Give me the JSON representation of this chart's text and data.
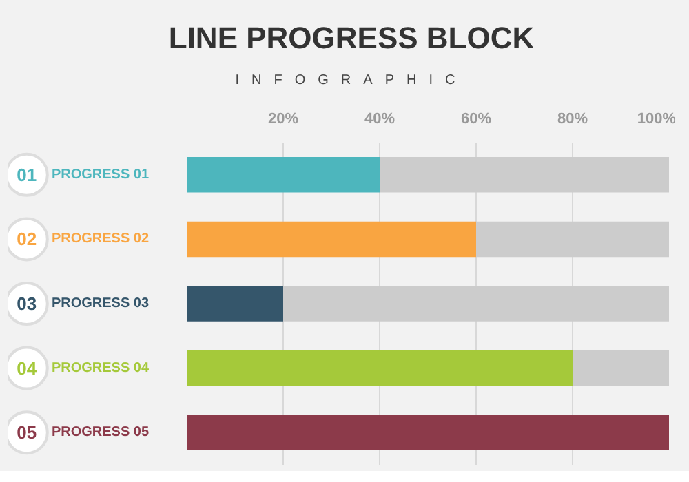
{
  "chart_data": {
    "type": "bar",
    "orientation": "horizontal",
    "stacked": true,
    "title": "LINE PROGRESS BLOCK",
    "subtitle": "INFOGRAPHIC",
    "categories": [
      "PROGRESS 01",
      "PROGRESS 02",
      "PROGRESS 03",
      "PROGRESS 04",
      "PROGRESS 05"
    ],
    "series": [
      {
        "colors": [
          "#4db6bd",
          "#f9a541",
          "#35566b",
          "#a5c93a",
          "#8c3a4a"
        ],
        "values": [
          40,
          60,
          20,
          80,
          100
        ]
      },
      {
        "color": "#cccccc",
        "values": [
          60,
          40,
          80,
          20,
          0
        ]
      }
    ],
    "annotations": [
      "01",
      "02",
      "03",
      "04",
      "05"
    ],
    "xlim": [
      0,
      100
    ],
    "xticks": [
      {
        "value": 20,
        "label": "20%"
      },
      {
        "value": 40,
        "label": "40%"
      },
      {
        "value": 60,
        "label": "60%"
      },
      {
        "value": 80,
        "label": "80%"
      },
      {
        "value": 100,
        "label": "100%"
      }
    ],
    "grid": "x"
  }
}
